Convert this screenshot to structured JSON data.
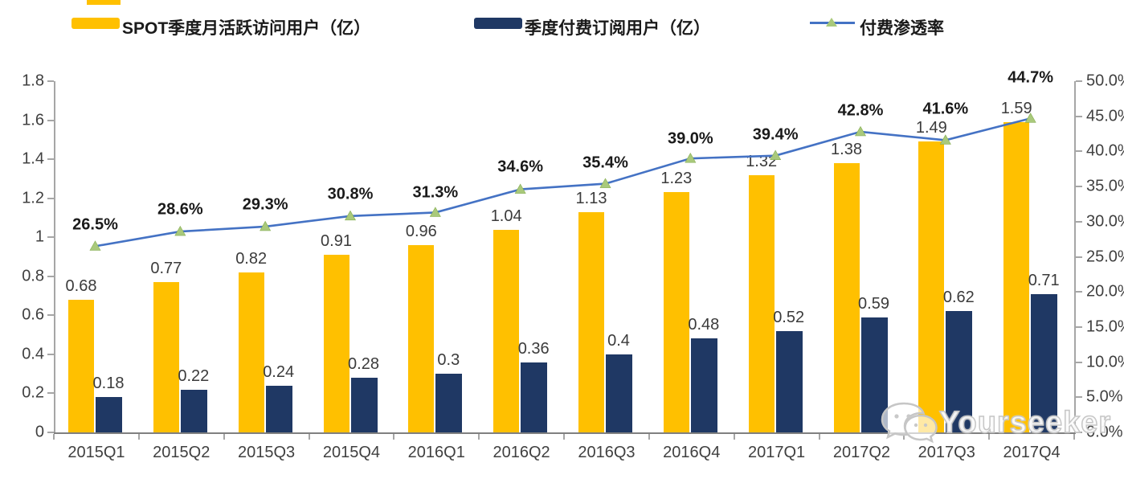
{
  "legend": [
    {
      "label": "SPOT季度月活跃访问用户（亿）",
      "swatch": "bar",
      "color": "#FFC000"
    },
    {
      "label": "季度付费订阅用户（亿）",
      "swatch": "bar",
      "color": "#1F3864"
    },
    {
      "label": "付费渗透率",
      "swatch": "line",
      "color": "#4472C4",
      "marker_color": "#A9C97B"
    }
  ],
  "watermark": {
    "text": "Yourseeker",
    "icon": "wechat-icon"
  },
  "colors": {
    "mau_bar": "#FFC000",
    "subscriber_bar": "#1F3864",
    "penetration_line": "#4472C4",
    "penetration_marker": "#A9C97B",
    "axis": "#A6A6A6",
    "baseline": "#808080",
    "text": "#404040"
  },
  "chart_data": {
    "type": "bar",
    "subtype": "grouped-bars-with-line-combo",
    "legend_position": "top",
    "grid": false,
    "categories": [
      "2015Q1",
      "2015Q2",
      "2015Q3",
      "2015Q4",
      "2016Q1",
      "2016Q2",
      "2016Q3",
      "2016Q4",
      "2017Q1",
      "2017Q2",
      "2017Q3",
      "2017Q4"
    ],
    "series": [
      {
        "name": "SPOT季度月活跃访问用户（亿）",
        "type": "bar",
        "axis": "left",
        "color": "#FFC000",
        "values": [
          0.68,
          0.77,
          0.82,
          0.91,
          0.96,
          1.04,
          1.13,
          1.23,
          1.32,
          1.38,
          1.49,
          1.59
        ],
        "labels": [
          "0.68",
          "0.77",
          "0.82",
          "0.91",
          "0.96",
          "1.04",
          "1.13",
          "1.23",
          "1.32",
          "1.38",
          "1.49",
          "1.59"
        ]
      },
      {
        "name": "季度付费订阅用户（亿）",
        "type": "bar",
        "axis": "left",
        "color": "#1F3864",
        "values": [
          0.18,
          0.22,
          0.24,
          0.28,
          0.3,
          0.36,
          0.4,
          0.48,
          0.52,
          0.59,
          0.62,
          0.71
        ],
        "labels": [
          "0.18",
          "0.22",
          "0.24",
          "0.28",
          "0.3",
          "0.36",
          "0.4",
          "0.48",
          "0.52",
          "0.59",
          "0.62",
          "0.71"
        ]
      },
      {
        "name": "付费渗透率",
        "type": "line",
        "axis": "right",
        "color": "#4472C4",
        "marker": "triangle",
        "marker_color": "#A9C97B",
        "values": [
          26.5,
          28.6,
          29.3,
          30.8,
          31.3,
          34.6,
          35.4,
          39.0,
          39.4,
          42.8,
          41.6,
          44.7
        ],
        "labels": [
          "26.5%",
          "28.6%",
          "29.3%",
          "30.8%",
          "31.3%",
          "34.6%",
          "35.4%",
          "39.0%",
          "39.4%",
          "42.8%",
          "41.6%",
          "44.7%"
        ]
      }
    ],
    "left_axis": {
      "min": 0,
      "max": 1.8,
      "step": 0.2,
      "ticks": [
        "0",
        "0.2",
        "0.4",
        "0.6",
        "0.8",
        "1",
        "1.2",
        "1.4",
        "1.6",
        "1.8"
      ]
    },
    "right_axis": {
      "min": 0,
      "max": 50,
      "step": 5,
      "ticks": [
        "0.0%",
        "5.0%",
        "10.0%",
        "15.0%",
        "20.0%",
        "25.0%",
        "30.0%",
        "35.0%",
        "40.0%",
        "45.0%",
        "50.0%"
      ]
    }
  }
}
